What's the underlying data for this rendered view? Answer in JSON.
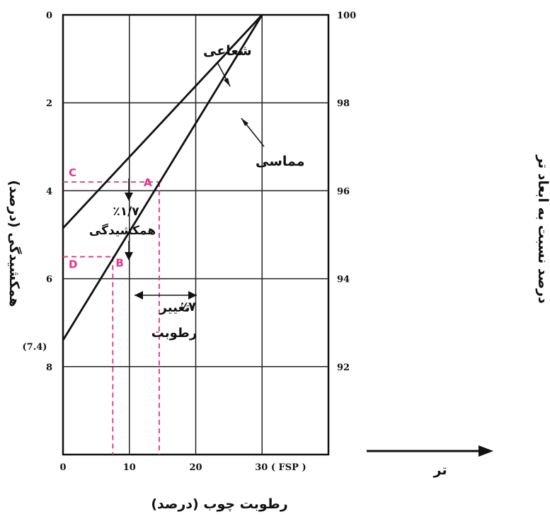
{
  "chart_data": {
    "type": "line",
    "xlabel": "رطوبت چوب (درصد)",
    "ylabel_left": "همکشیدگی (درصد)",
    "ylabel_right": "درصد نسبت به ابعاد تر",
    "x_ticks": [
      "0",
      "10",
      "20",
      "30 ( FSP )"
    ],
    "x_tick_values": [
      0,
      10,
      20,
      30
    ],
    "y_ticks_left": [
      "0",
      "2",
      "4",
      "6",
      "8"
    ],
    "y_tick_values_left": [
      0,
      2,
      4,
      6,
      8
    ],
    "y_ticks_right": [
      "100",
      "98",
      "96",
      "94",
      "92"
    ],
    "extra_left_label": "(7.4)",
    "xlim": [
      0,
      40
    ],
    "ylim": [
      0,
      10
    ],
    "grid": true,
    "series": [
      {
        "name": "شعاعی",
        "x": [
          0,
          30
        ],
        "y": [
          4.85,
          0
        ],
        "color": "#111111"
      },
      {
        "name": "مماسی",
        "x": [
          0,
          30
        ],
        "y": [
          7.4,
          0
        ],
        "color": "#111111"
      }
    ],
    "guide_points": [
      {
        "label": "A",
        "x": 14.5,
        "y": 3.8
      },
      {
        "label": "B",
        "x": 7.5,
        "y": 5.5
      },
      {
        "label": "C",
        "x": 0,
        "y": 3.8
      },
      {
        "label": "D",
        "x": 0,
        "y": 5.5
      }
    ],
    "annotations": {
      "shrinkage_value": "٪۱/۷",
      "shrinkage_label": "همکشیدگی",
      "moisture_change_value": "٪۷",
      "moisture_change_label_1": "تغییر",
      "moisture_change_label_2": "رطوبت",
      "direction_label": "تر"
    },
    "colors": {
      "guide": "#e0338a",
      "line": "#111111",
      "grid": "#222222"
    }
  }
}
